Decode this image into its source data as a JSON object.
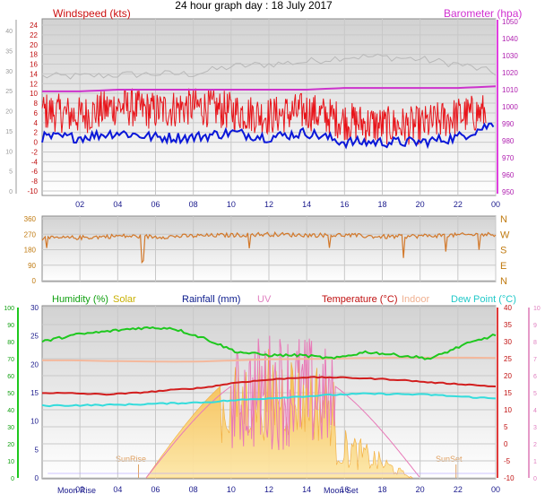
{
  "page_title": "24 hour graph day : 18 July 2017",
  "colors": {
    "wind": "#e8141a",
    "wind_avg": "#0a17d8",
    "baro": "#e040e0",
    "baro_line": "#cc33cc",
    "gust_grey": "#b8b8b8",
    "dir": "#d2782a",
    "dir_axis": "#c07a10",
    "humidity": "#1ec81e",
    "solar": "#d4b400",
    "solar_fill": "#f7c45a",
    "rain": "#0a1a8c",
    "uv": "#e69ac8",
    "temp": "#d21e1e",
    "indoor": "#f4b89c",
    "dew": "#34dcdc",
    "grid": "#c8c8c8",
    "axis_grey": "#9a9a9a"
  },
  "chart_data": [
    {
      "type": "line",
      "title": "24 hour graph day : 18 July 2017",
      "x_ticks": [
        "02",
        "04",
        "06",
        "08",
        "10",
        "12",
        "14",
        "16",
        "18",
        "20",
        "22",
        "00"
      ],
      "left_axis": {
        "label": "Windspeed (kts)",
        "ticks": [
          "24",
          "22",
          "20",
          "18",
          "16",
          "14",
          "12",
          "10",
          "8",
          "6",
          "4",
          "2",
          "0",
          "-2",
          "-4",
          "-6",
          "-8",
          "-10"
        ],
        "range": [
          -10,
          25
        ]
      },
      "outer_left_axis": {
        "ticks": [
          "40",
          "35",
          "30",
          "25",
          "20",
          "15",
          "10",
          "5",
          "0"
        ]
      },
      "right_axis": {
        "label": "Barometer (hpa)",
        "ticks": [
          "1050",
          "1040",
          "1030",
          "1020",
          "1010",
          "1000",
          "990",
          "980",
          "970",
          "960",
          "950"
        ]
      },
      "series": [
        {
          "name": "Windspeed (kts)",
          "note_hours": [
            0,
            2,
            4,
            6,
            8,
            10,
            12,
            14,
            16,
            18,
            20,
            22,
            24
          ],
          "values": [
            6,
            5,
            7,
            6,
            7,
            6,
            5,
            6,
            4,
            3,
            3,
            5,
            6
          ]
        },
        {
          "values": [
            1,
            1,
            2,
            1,
            1,
            2,
            1,
            2,
            0,
            0,
            0,
            1,
            4
          ]
        },
        {
          "name": "Barometer (hpa)",
          "values": [
            1009,
            1009,
            1010,
            1010,
            1010,
            1010,
            1010,
            1010,
            1011,
            1011,
            1011,
            1011,
            1012
          ]
        }
      ]
    },
    {
      "type": "scatter",
      "y_ticks_left": [
        "360",
        "270",
        "180",
        "90",
        "0"
      ],
      "y_ticks_right": [
        "N",
        "W",
        "S",
        "E",
        "N"
      ],
      "series": [
        {
          "values": [
            245,
            250,
            260,
            255,
            260,
            265,
            270,
            265,
            265,
            255,
            260,
            265,
            270
          ]
        }
      ]
    },
    {
      "type": "line",
      "legend": [
        "Humidity  (%)",
        "Solar",
        "Rainfall (mm)",
        "UV",
        "Temperature (°C)",
        "Indoor",
        "Dew Point (°C)"
      ],
      "x_ticks": [
        "02",
        "04",
        "06",
        "08",
        "10",
        "12",
        "14",
        "16",
        "18",
        "20",
        "22",
        "00"
      ],
      "left_axis_humidity": [
        "100",
        "90",
        "80",
        "70",
        "60",
        "50",
        "40",
        "30",
        "20",
        "10",
        "0"
      ],
      "left_axis_rain": [
        "30",
        "25",
        "20",
        "15",
        "10",
        "5",
        "0"
      ],
      "right_axis_temp": [
        "40",
        "35",
        "30",
        "25",
        "20",
        "15",
        "10",
        "5",
        "0",
        "-5",
        "-10"
      ],
      "right_axis_uv": [
        "10",
        "9",
        "8",
        "7",
        "6",
        "5",
        "4",
        "3",
        "2",
        "1",
        "0"
      ],
      "annotations": [
        "Moon Rise",
        "SunRise",
        "Moon Set",
        "SunSet"
      ],
      "series": [
        {
          "name": "Humidity  (%)",
          "values": [
            80,
            84,
            86,
            88,
            88,
            82,
            74,
            72,
            72,
            70,
            74,
            72,
            70,
            78,
            84
          ]
        },
        {
          "name": "Temperature (°C)",
          "values": [
            15,
            14.8,
            14.5,
            15,
            15.8,
            16.5,
            18,
            18.8,
            19.5,
            19.5,
            19.2,
            18.8,
            18,
            17.5,
            16.8
          ]
        },
        {
          "name": "Dew Point (°C)",
          "values": [
            11.2,
            11.3,
            11.4,
            11.6,
            11.9,
            12.2,
            12.8,
            13.4,
            13.9,
            14.4,
            14.7,
            14.6,
            14.4,
            13.8,
            13.3
          ]
        },
        {
          "name": "Indoor",
          "values": [
            24.5,
            24.5,
            24.3,
            24.2,
            24.1,
            24.2,
            24.5,
            24.8,
            24.9,
            25.0,
            25.2,
            25.3,
            25.3,
            25.3,
            25.2
          ]
        }
      ]
    }
  ]
}
